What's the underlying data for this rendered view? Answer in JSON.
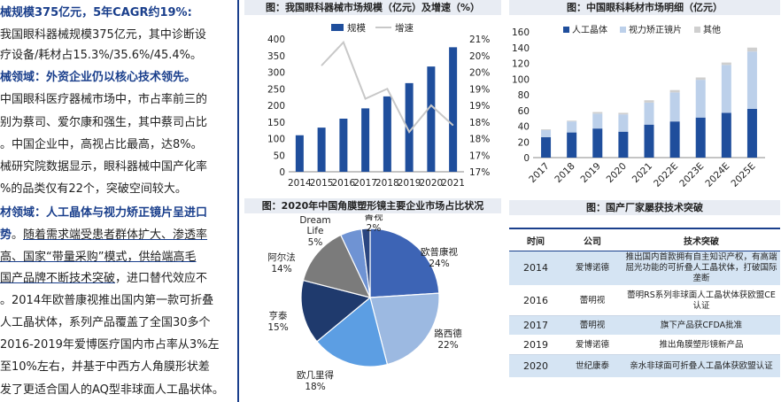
{
  "left_text": {
    "lines": [
      {
        "parts": [
          {
            "t": "械规模375亿元，5年CAGR约19%:",
            "c": "hl"
          }
        ]
      },
      {
        "parts": [
          {
            "t": "我国眼科器械规模375亿元，其中诊断设",
            "c": ""
          }
        ]
      },
      {
        "parts": [
          {
            "t": "疗设备/耗材占15.3%/35.6%/45.4%。",
            "c": ""
          }
        ]
      },
      {
        "parts": [
          {
            "t": "械领域：外资企业仍以核心技术领先。",
            "c": "hl"
          }
        ]
      },
      {
        "parts": [
          {
            "t": "中国眼科医疗器械市场中，市占率前三的",
            "c": ""
          }
        ]
      },
      {
        "parts": [
          {
            "t": "别为蔡司、爱尔康和强生，其中蔡司占比",
            "c": ""
          }
        ]
      },
      {
        "parts": [
          {
            "t": "。中国企业中，高视占比最高，达8%。",
            "c": ""
          }
        ]
      },
      {
        "parts": [
          {
            "t": "械研究院数据显示，眼科器械中国产化率",
            "c": ""
          }
        ]
      },
      {
        "parts": [
          {
            "t": "%的品类仅有22个，突破空间较大。",
            "c": ""
          }
        ]
      },
      {
        "parts": [
          {
            "t": "材领域：人工晶体与视力矫正镜片呈进口",
            "c": "hl"
          }
        ]
      },
      {
        "parts": [
          {
            "t": "势",
            "c": "hl"
          },
          {
            "t": "。",
            "c": ""
          },
          {
            "t": "随着需求端受患者群体扩大、渗透率",
            "c": "ul"
          }
        ]
      },
      {
        "parts": [
          {
            "t": "高、国家“带量采购”模式，供给端高毛",
            "c": "ul"
          }
        ]
      },
      {
        "parts": [
          {
            "t": "国产品牌不断技术突破",
            "c": "ul"
          },
          {
            "t": "，进口替代效应不",
            "c": ""
          }
        ]
      },
      {
        "parts": [
          {
            "t": "。2014年欧普康视推出国内第一款可折叠",
            "c": ""
          }
        ]
      },
      {
        "parts": [
          {
            "t": "人工晶状体，系列产品覆盖了全国30多个",
            "c": ""
          }
        ]
      },
      {
        "parts": [
          {
            "t": "2016-2019年爱博医疗国内市占率从3%左",
            "c": ""
          }
        ]
      },
      {
        "parts": [
          {
            "t": "至10%左右，并基于中西方人角膜形状差",
            "c": ""
          }
        ]
      },
      {
        "parts": [
          {
            "t": "发了更适合国人的AQ型非球面人工晶状体。",
            "c": ""
          }
        ]
      }
    ]
  },
  "chart1": {
    "title": "图：我国眼科器械市场规模（亿元）及增速（%）",
    "chart_data": {
      "type": "bar",
      "categories": [
        "2014",
        "2015",
        "2016",
        "2017",
        "2018",
        "2019",
        "2020",
        "2021"
      ],
      "series": [
        {
          "name": "规模",
          "type": "bar",
          "axis": "left",
          "values": [
            110,
            133,
            160,
            191,
            227,
            267,
            317,
            375
          ]
        },
        {
          "name": "增速",
          "type": "line",
          "axis": "right",
          "values": [
            null,
            20.2,
            20.9,
            19.2,
            19.5,
            18.2,
            19.0,
            18.4
          ]
        }
      ],
      "left_ylim": [
        0,
        400
      ],
      "left_ticks": [
        0,
        50,
        100,
        150,
        200,
        250,
        300,
        350,
        400
      ],
      "right_ylim": [
        17,
        21
      ],
      "right_ticks": [
        "17%",
        "17%",
        "18%",
        "18%",
        "19%",
        "19%",
        "20%",
        "20%",
        "21%"
      ],
      "legend": "top"
    }
  },
  "chart2": {
    "title": "图：中国眼科耗材市场明细（亿元）",
    "chart_data": {
      "type": "bar",
      "stacked": true,
      "categories": [
        "2017",
        "2018",
        "2019",
        "2020",
        "2021",
        "2022E",
        "2023E",
        "2024E",
        "2025E"
      ],
      "series": [
        {
          "name": "人工晶体",
          "values": [
            26,
            32,
            37,
            33,
            42,
            46,
            51,
            57,
            62
          ]
        },
        {
          "name": "视力矫正镜片",
          "values": [
            9,
            14,
            19,
            22,
            28,
            37,
            48,
            61,
            73
          ]
        },
        {
          "name": "其他",
          "values": [
            1,
            1,
            2,
            2,
            3,
            3,
            3,
            3,
            5
          ]
        }
      ],
      "ylim": [
        0,
        160
      ],
      "ticks": [
        0,
        20,
        40,
        60,
        80,
        100,
        120,
        140,
        160
      ],
      "legend": "top"
    }
  },
  "chart3": {
    "title": "图：2020年中国角膜塑形镜主要企业市场占比状况",
    "chart_data": {
      "type": "pie",
      "slices": [
        {
          "label": "欧普康视",
          "value": 24,
          "text": "24%",
          "color": "#3d64b5"
        },
        {
          "label": "路西德",
          "value": 22,
          "text": "22%",
          "color": "#9cb9e1"
        },
        {
          "label": "欧几里得",
          "value": 18,
          "text": "18%",
          "color": "#5c9ee3"
        },
        {
          "label": "亨泰",
          "value": 15,
          "text": "15%",
          "color": "#1f3a6d"
        },
        {
          "label": "阿尔法",
          "value": 14,
          "text": "14%",
          "color": "#7b7b7b"
        },
        {
          "label": "Dream Life",
          "value": 5,
          "text": "5%",
          "color": "#6f93d3"
        },
        {
          "label": "菁视",
          "value": 2,
          "text": "2%",
          "color": "#2b4680"
        }
      ]
    }
  },
  "table": {
    "title": "图：国产厂家屡获技术突破",
    "headers": [
      "时间",
      "公司",
      "技术突破"
    ],
    "rows": [
      {
        "year": "2014",
        "company": "爱博诺德",
        "text": "推出国内首款拥有自主知识产权，有高端屈光功能的可折叠人工晶状体，打破国际垄断"
      },
      {
        "year": "2016",
        "company": "蕾明视",
        "text": "蕾明RS系列非球面人工晶状体获欧盟CE认证"
      },
      {
        "year": "2017",
        "company": "蕾明视",
        "text": "旗下产品获CFDA批准"
      },
      {
        "year": "2019",
        "company": "爱博诺德",
        "text": "推出角膜塑形镜新产品"
      },
      {
        "year": "2020",
        "company": "世纪康泰",
        "text": "亲水非球面可折叠人工晶体获欧盟认证"
      }
    ]
  },
  "colors": {
    "navy": "#1a3f8c",
    "bar": "#1f4e9c",
    "bar_light": "#bcd0ea",
    "bar_gray": "#cfcfcf",
    "line": "#c8c8c8",
    "table_band": "#d5e4f3"
  }
}
